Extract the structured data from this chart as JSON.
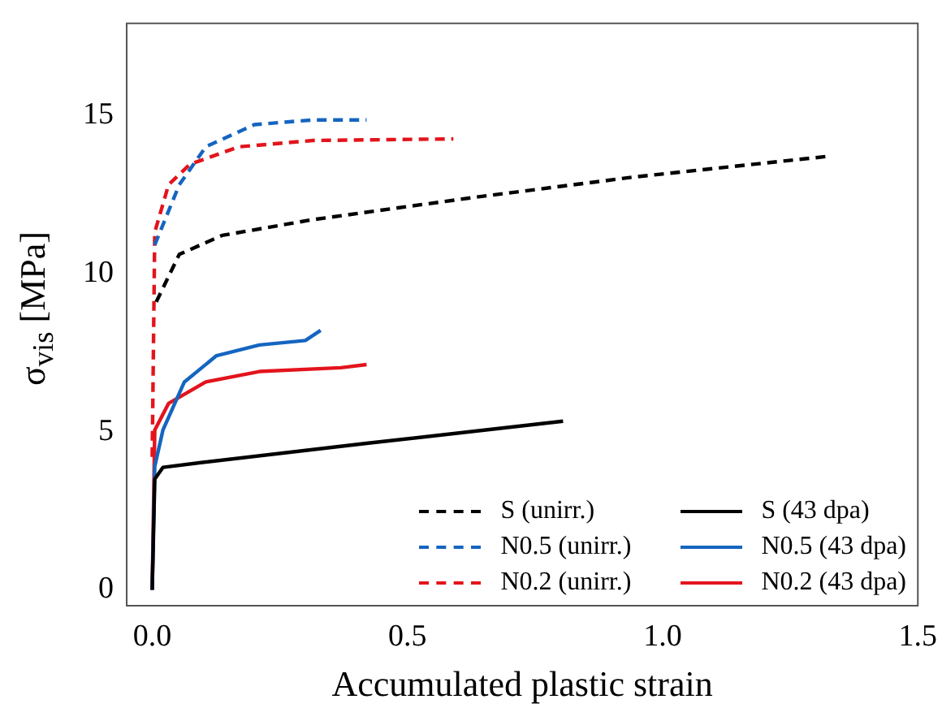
{
  "chart_data": {
    "type": "line",
    "xlabel": "Accumulated plastic strain",
    "ylabel": "σ$_{vis}$ [MPa]",
    "xlim": [
      -0.05,
      1.5
    ],
    "xticks": [
      {
        "value": 0,
        "label": "0.0"
      },
      0.5,
      {
        "value": 1,
        "label": "1.0"
      },
      1.5
    ],
    "ylim": [
      -0.5,
      17.9
    ],
    "yticks": [
      0,
      5,
      10,
      15
    ],
    "grid": false,
    "legend": "bottom right",
    "marker": "none",
    "series": [
      {
        "name": "S (unirr.)",
        "color": "#000000",
        "line_style": "dashed",
        "x": [
          0.008,
          0.053,
          0.137,
          0.315,
          0.63,
          0.946,
          1.325
        ],
        "values": [
          9.1,
          10.6,
          11.2,
          11.7,
          12.4,
          13.05,
          13.7
        ]
      },
      {
        "name": "N0.5 (unirr.)",
        "color": "#1565c0",
        "line_style": "dashed",
        "x": [
          0.005,
          0.053,
          0.105,
          0.2,
          0.315,
          0.42
        ],
        "values": [
          10.9,
          12.8,
          14.0,
          14.7,
          14.85,
          14.85
        ]
      },
      {
        "name": "N0.2 (unirr.)",
        "color": "#e3141c",
        "line_style": "dashed",
        "x": [
          0,
          0.005,
          0.032,
          0.074,
          0.17,
          0.315,
          0.59
        ],
        "values": [
          4.2,
          11.3,
          12.8,
          13.45,
          14.0,
          14.2,
          14.25
        ]
      },
      {
        "name": "S (43 dpa)",
        "color": "#000000",
        "line_style": "solid",
        "x": [
          0,
          0.005,
          0.021,
          0.105,
          0.42,
          0.805
        ],
        "values": [
          0,
          3.5,
          3.87,
          4.04,
          4.63,
          5.33
        ]
      },
      {
        "name": "N0.5 (43 dpa)",
        "color": "#1565c0",
        "line_style": "solid",
        "x": [
          0,
          0.005,
          0.021,
          0.063,
          0.126,
          0.21,
          0.3,
          0.33
        ],
        "values": [
          0,
          3.9,
          5.05,
          6.57,
          7.4,
          7.74,
          7.88,
          8.2
        ]
      },
      {
        "name": "N0.2 (43 dpa)",
        "color": "#e3141c",
        "line_style": "solid",
        "x": [
          0,
          0.005,
          0.032,
          0.105,
          0.21,
          0.37,
          0.42
        ],
        "values": [
          0,
          5.05,
          5.89,
          6.57,
          6.9,
          7.02,
          7.12
        ]
      }
    ]
  }
}
